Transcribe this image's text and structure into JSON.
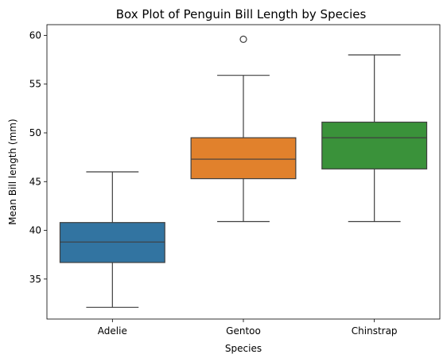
{
  "chart_data": {
    "type": "box",
    "title": "Box Plot of Penguin Bill Length by Species",
    "xlabel": "Species",
    "ylabel": "Mean Bill length (mm)",
    "ylim": [
      30.9,
      61.1
    ],
    "yticks": [
      35,
      40,
      45,
      50,
      55,
      60
    ],
    "grid": false,
    "categories": [
      "Adelie",
      "Gentoo",
      "Chinstrap"
    ],
    "colors": [
      "#3274a1",
      "#e1812c",
      "#3a923a"
    ],
    "boxes": [
      {
        "category": "Adelie",
        "whisker_low": 32.1,
        "q1": 36.7,
        "median": 38.8,
        "q3": 40.8,
        "whisker_high": 46.0,
        "outliers": []
      },
      {
        "category": "Gentoo",
        "whisker_low": 40.9,
        "q1": 45.3,
        "median": 47.3,
        "q3": 49.5,
        "whisker_high": 55.9,
        "outliers": [
          59.6
        ]
      },
      {
        "category": "Chinstrap",
        "whisker_low": 40.9,
        "q1": 46.3,
        "median": 49.5,
        "q3": 51.1,
        "whisker_high": 58.0,
        "outliers": []
      }
    ]
  }
}
